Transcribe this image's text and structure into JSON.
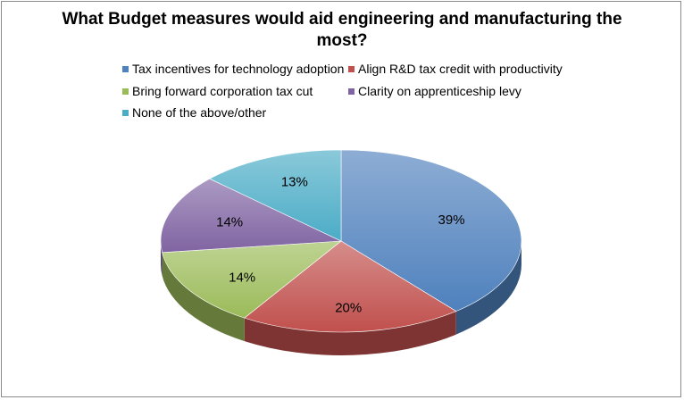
{
  "chart_data": {
    "type": "pie",
    "title": "What Budget measures would aid engineering and manufacturing the most?",
    "legend_position": "top",
    "categories": [
      "Tax incentives for technology adoption",
      "Align R&D tax credit with productivity",
      "Bring forward corporation tax cut",
      "Clarity on apprenticeship levy",
      "None of the above/other"
    ],
    "values": [
      39,
      20,
      14,
      14,
      13
    ],
    "labels": [
      "39%",
      "20%",
      "14%",
      "14%",
      "13%"
    ],
    "colors": [
      "#4f81bd",
      "#c0504d",
      "#9bbb59",
      "#8064a2",
      "#4bacc6"
    ]
  }
}
